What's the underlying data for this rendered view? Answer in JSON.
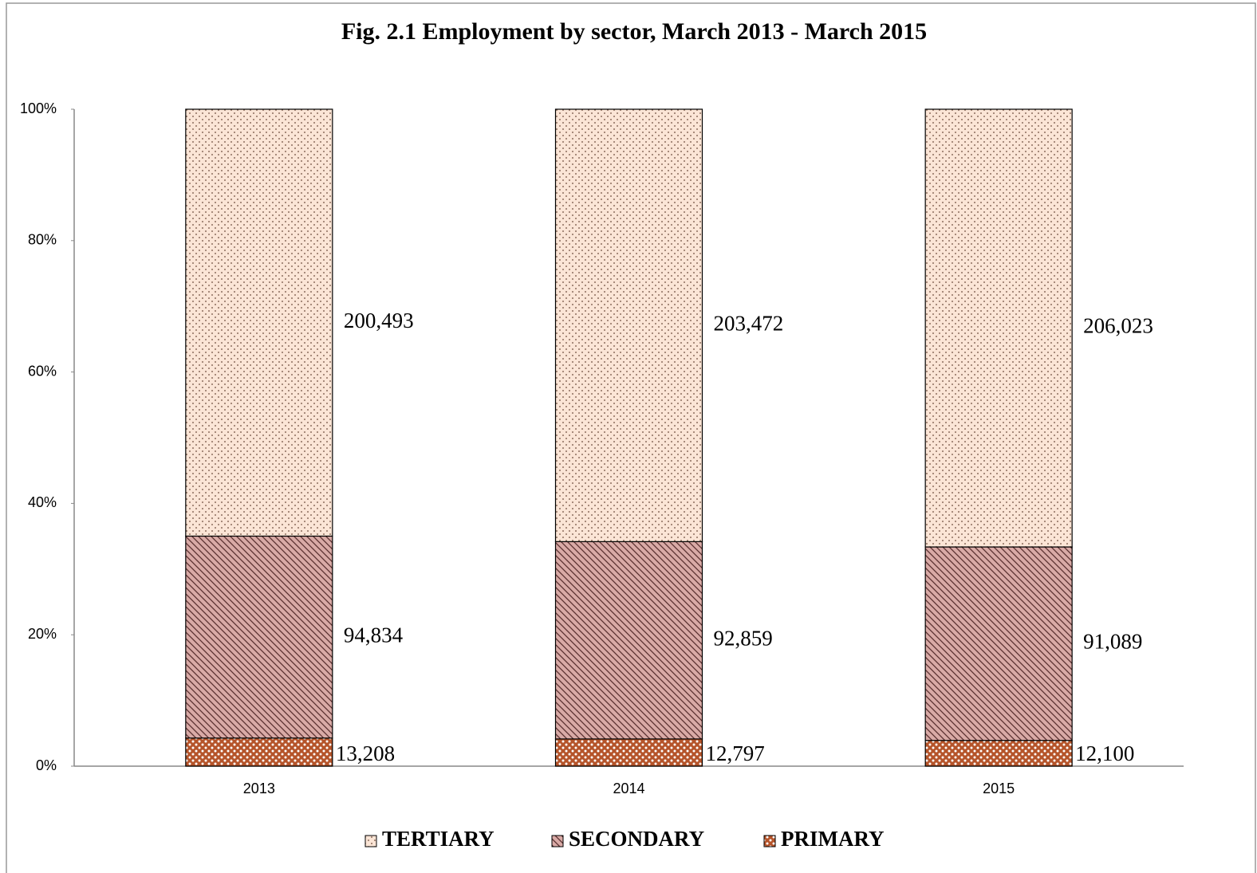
{
  "chart_data": {
    "type": "percent_stacked_bar",
    "title": "Fig. 2.1 Employment by sector, March 2013 - March 2015",
    "categories": [
      "2013",
      "2014",
      "2015"
    ],
    "series": [
      {
        "name": "TERTIARY",
        "color": "#fbe5d6",
        "values": [
          200493,
          203472,
          206023
        ],
        "value_labels": [
          "200,493",
          "203,472",
          "206,023"
        ]
      },
      {
        "name": "SECONDARY",
        "color": "#d9aaa6",
        "values": [
          94834,
          92859,
          91089
        ],
        "value_labels": [
          "94,834",
          "92,859",
          "91,089"
        ]
      },
      {
        "name": "PRIMARY",
        "color": "#b5542a",
        "values": [
          13208,
          12797,
          12100
        ],
        "value_labels": [
          "13,208",
          "12,797",
          "12,100"
        ]
      }
    ],
    "ylim": [
      0,
      100
    ],
    "yticks": [
      {
        "value": 0,
        "label": "0%"
      },
      {
        "value": 20,
        "label": "20%"
      },
      {
        "value": 40,
        "label": "40%"
      },
      {
        "value": 60,
        "label": "60%"
      },
      {
        "value": 80,
        "label": "80%"
      },
      {
        "value": 100,
        "label": "100%"
      }
    ],
    "legend": "bottom"
  }
}
